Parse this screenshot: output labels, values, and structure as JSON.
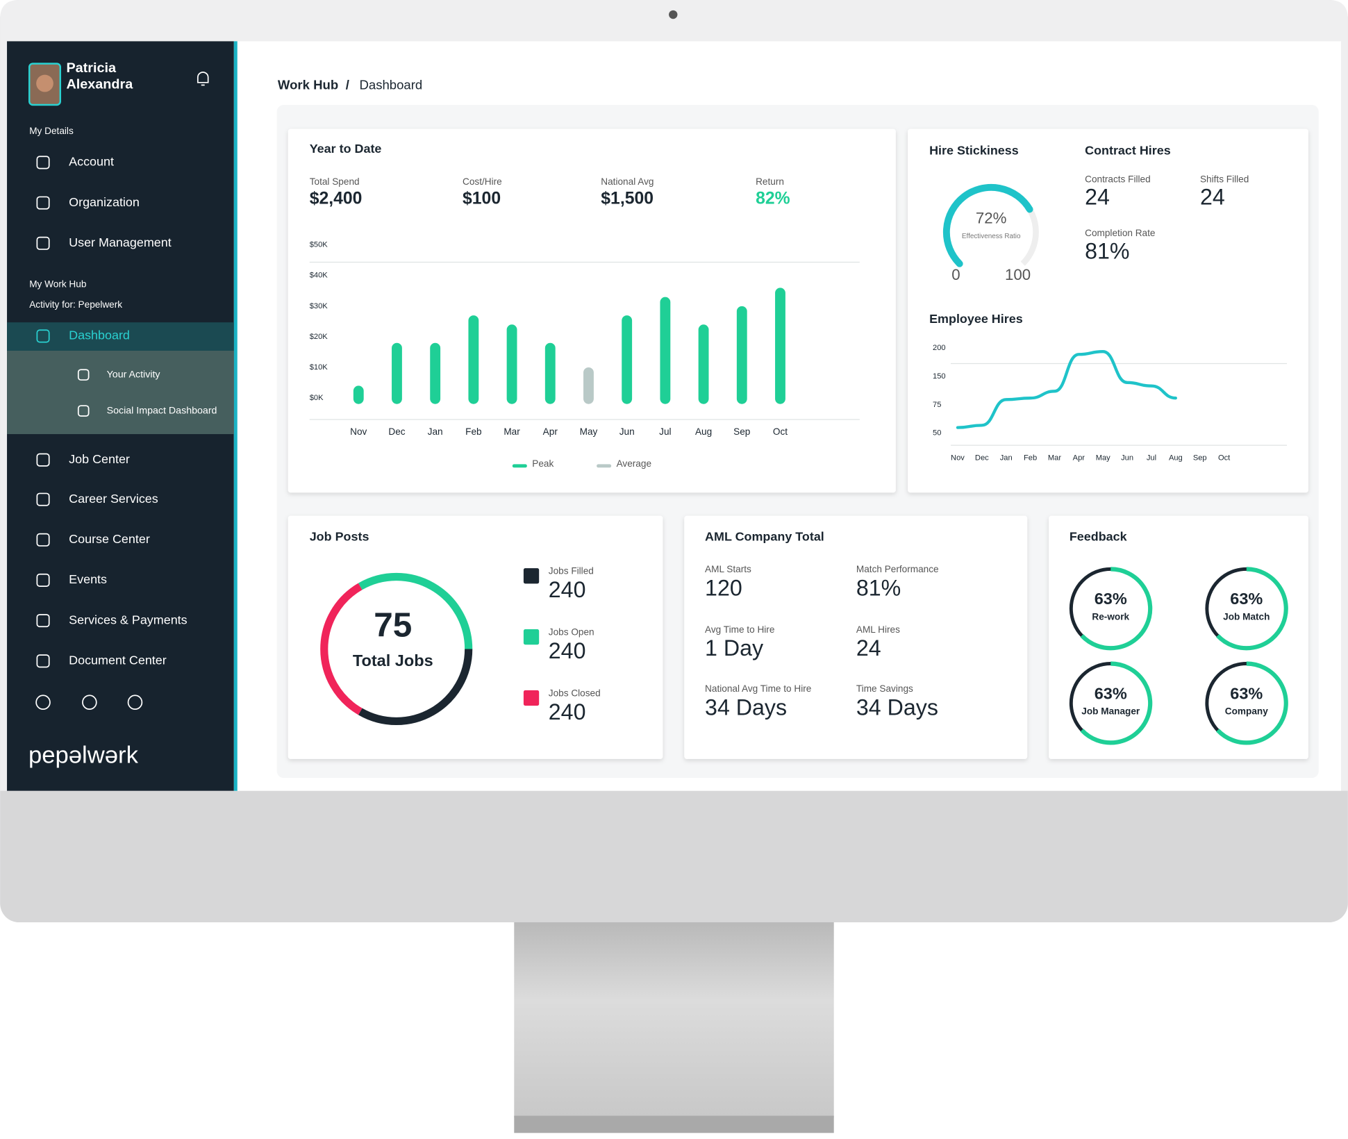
{
  "sidebar": {
    "user_name": "Patricia Alexandra",
    "sections": [
      {
        "title": "My Details",
        "items": [
          "Account",
          "Organization",
          "User Management"
        ]
      },
      {
        "title": "My Work Hub",
        "subtitle": "Activity for: Pepelwerk",
        "items": [
          "Dashboard"
        ],
        "subitems": [
          "Your Activity",
          "Social Impact Dashboard"
        ]
      }
    ],
    "items": [
      "Job Center",
      "Career Services",
      "Course Center",
      "Events",
      "Services & Payments",
      "Document Center"
    ],
    "logo": "pepəlwərk"
  },
  "breadcrumb": [
    "Work Hub",
    "/",
    "Dashboard"
  ],
  "year_to_date": {
    "title": "Year to Date",
    "stats": [
      {
        "label": "Total Spend",
        "value": "$2,400"
      },
      {
        "label": "Cost/Hire",
        "value": "$100"
      },
      {
        "label": "National Avg",
        "value": "$1,500"
      },
      {
        "label": "Return",
        "value": "82%"
      }
    ],
    "chart_data": {
      "type": "bar",
      "categories": [
        "Nov",
        "Dec",
        "Jan",
        "Feb",
        "Mar",
        "Apr",
        "May",
        "Jun",
        "Jul",
        "Aug",
        "Sep",
        "Oct"
      ],
      "series": [
        {
          "name": "Peak",
          "color": "#1fcf96",
          "values": [
            4000,
            18000,
            18000,
            27000,
            24000,
            18000,
            null,
            27000,
            33000,
            24000,
            30000,
            36000
          ]
        },
        {
          "name": "Average",
          "color": "#b9c9c7",
          "values": [
            null,
            null,
            null,
            null,
            null,
            null,
            10000,
            null,
            null,
            null,
            null,
            null
          ]
        }
      ],
      "ylim": [
        0,
        50000
      ],
      "yticks": [
        {
          "value": 0,
          "label": "$0K"
        },
        {
          "value": 10000,
          "label": "$10K"
        },
        {
          "value": 20000,
          "label": "$20K"
        },
        {
          "value": 30000,
          "label": "$30K"
        },
        {
          "value": 40000,
          "label": "$40K"
        },
        {
          "value": 50000,
          "label": "$50K"
        }
      ],
      "legend": "bottom"
    }
  },
  "hire_stickiness": {
    "title": "Hire Stickiness",
    "chart_data": {
      "type": "gauge",
      "value": 72,
      "value_label": "72%",
      "label": "Effectiveness Ratio",
      "ylim": [
        0,
        100
      ],
      "yticks": [
        0,
        100
      ],
      "color": "#1fc3c9"
    }
  },
  "contract_hires": {
    "title": "Contract Hires",
    "stats": [
      {
        "label": "Contracts Filled",
        "value": "24"
      },
      {
        "label": "Shifts Filled",
        "value": "24"
      },
      {
        "label": "Completion Rate",
        "value": "81%"
      }
    ]
  },
  "employee_hires": {
    "title": "Employee Hires",
    "chart_data": {
      "type": "line",
      "categories": [
        "Nov",
        "Dec",
        "Jan",
        "Feb",
        "Mar",
        "Apr",
        "May",
        "Jun",
        "Jul",
        "Aug",
        "Sep",
        "Oct"
      ],
      "values": [
        55,
        57,
        89,
        93,
        111,
        189,
        194,
        134,
        125,
        93,
        null,
        null
      ],
      "color": "#1fc3c9",
      "ylim": [
        50,
        200
      ],
      "yticks": [
        50,
        75,
        150,
        200
      ]
    }
  },
  "job_posts": {
    "title": "Job Posts",
    "chart_data": {
      "type": "donut",
      "center_value": "75",
      "center_label": "Total Jobs",
      "categories": [
        "Jobs Filled",
        "Jobs Open",
        "Jobs Closed"
      ],
      "values": [
        240,
        240,
        240
      ],
      "colors": [
        "#1b2630",
        "#1fcf96",
        "#f0245a"
      ]
    }
  },
  "aml_company_total": {
    "title": "AML Company Total",
    "stats": [
      {
        "label": "AML Starts",
        "value": "120"
      },
      {
        "label": "Match Performance",
        "value": "81%"
      },
      {
        "label": "Avg Time to Hire",
        "value": "1 Day"
      },
      {
        "label": "AML Hires",
        "value": "24"
      },
      {
        "label": "National Avg Time to Hire",
        "value": "34 Days"
      },
      {
        "label": "Time Savings",
        "value": "34 Days"
      }
    ]
  },
  "feedback": {
    "title": "Feedback",
    "chart_data": {
      "type": "ring",
      "categories": [
        "Re-work",
        "Job Match",
        "Job Manager",
        "Company"
      ],
      "values": [
        63,
        63,
        63,
        63
      ],
      "value_labels": [
        "63%",
        "63%",
        "63%",
        "63%"
      ],
      "ylim": [
        0,
        100
      ],
      "color": "#1fcf96"
    }
  }
}
